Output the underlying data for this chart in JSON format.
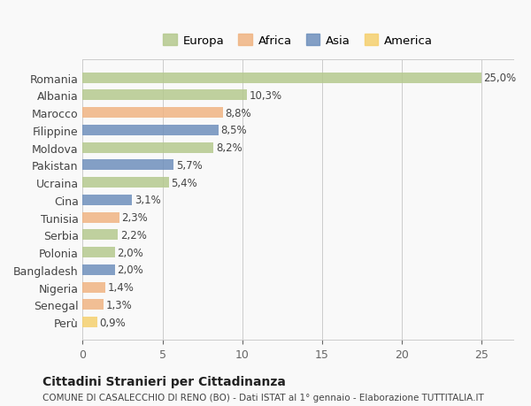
{
  "countries": [
    "Romania",
    "Albania",
    "Marocco",
    "Filippine",
    "Moldova",
    "Pakistan",
    "Ucraina",
    "Cina",
    "Tunisia",
    "Serbia",
    "Polonia",
    "Bangladesh",
    "Nigeria",
    "Senegal",
    "Perù"
  ],
  "values": [
    25.0,
    10.3,
    8.8,
    8.5,
    8.2,
    5.7,
    5.4,
    3.1,
    2.3,
    2.2,
    2.0,
    2.0,
    1.4,
    1.3,
    0.9
  ],
  "labels": [
    "25,0%",
    "10,3%",
    "8,8%",
    "8,5%",
    "8,2%",
    "5,7%",
    "5,4%",
    "3,1%",
    "2,3%",
    "2,2%",
    "2,0%",
    "2,0%",
    "1,4%",
    "1,3%",
    "0,9%"
  ],
  "continents": [
    "Europa",
    "Europa",
    "Africa",
    "Asia",
    "Europa",
    "Asia",
    "Europa",
    "Asia",
    "Africa",
    "Europa",
    "Europa",
    "Asia",
    "Africa",
    "Africa",
    "America"
  ],
  "colors": {
    "Europa": "#b5c98e",
    "Africa": "#f0b482",
    "Asia": "#6e8fbc",
    "America": "#f5d06e"
  },
  "legend_order": [
    "Europa",
    "Africa",
    "Asia",
    "America"
  ],
  "legend_colors": [
    "#b5c98e",
    "#f0b482",
    "#6e8fbc",
    "#f5d06e"
  ],
  "xlim": [
    0,
    27
  ],
  "xticks": [
    0,
    5,
    10,
    15,
    20,
    25
  ],
  "title1": "Cittadini Stranieri per Cittadinanza",
  "title2": "COMUNE DI CASALECCHIO DI RENO (BO) - Dati ISTAT al 1° gennaio - Elaborazione TUTTITALIA.IT",
  "background_color": "#f9f9f9",
  "bar_background": "#ffffff"
}
